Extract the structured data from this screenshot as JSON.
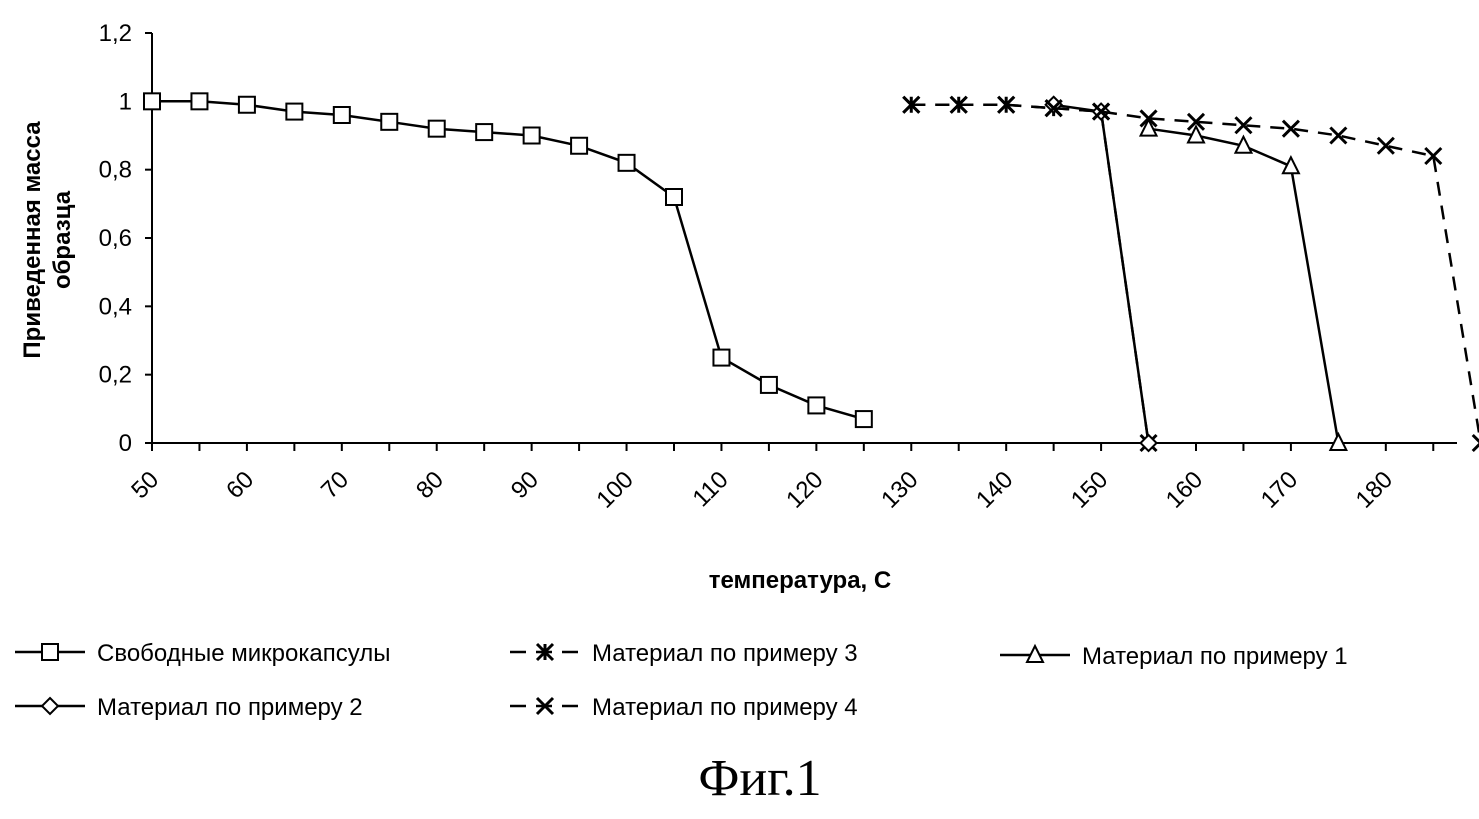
{
  "chart_data": {
    "type": "line",
    "title": "",
    "xlabel": "температура, С",
    "ylabel_line1": "Приведенная масса",
    "ylabel_line2": "образца",
    "x_tick_labels": [
      "50",
      "60",
      "70",
      "80",
      "90",
      "100",
      "110",
      "120",
      "130",
      "140",
      "150",
      "160",
      "170",
      "180"
    ],
    "x_tick_values": [
      50,
      60,
      70,
      80,
      90,
      100,
      110,
      120,
      130,
      140,
      150,
      160,
      170,
      180
    ],
    "y_tick_labels": [
      "0",
      "0,2",
      "0,4",
      "0,6",
      "0,8",
      "1",
      "1,2"
    ],
    "y_tick_values": [
      0,
      0.2,
      0.4,
      0.6,
      0.8,
      1.0,
      1.2
    ],
    "xlim": [
      50,
      187.5
    ],
    "ylim": [
      0,
      1.2
    ],
    "grid": false,
    "legend_position": "bottom",
    "series": [
      {
        "name": "Свободные микрокапсулы",
        "marker": "square",
        "x": [
          50,
          55,
          60,
          65,
          70,
          75,
          80,
          85,
          90,
          95,
          100,
          105,
          110,
          115,
          120,
          125,
          130
        ],
        "y": [
          1.0,
          1.0,
          0.99,
          0.97,
          0.96,
          0.94,
          0.92,
          0.91,
          0.9,
          0.87,
          0.82,
          0.72,
          0.25,
          0.17,
          0.11,
          0.07,
          null
        ]
      },
      {
        "name": "Материал по примеру 3",
        "marker": "star",
        "x": [
          130,
          135,
          140,
          145,
          150,
          155
        ],
        "y": [
          0.99,
          0.99,
          0.99,
          0.98,
          0.97,
          0.0
        ]
      },
      {
        "name": "Материал по примеру 1",
        "marker": "triangle",
        "x": [
          155,
          160,
          165,
          170,
          175
        ],
        "y": [
          0.92,
          0.9,
          0.87,
          0.81,
          0.0
        ]
      },
      {
        "name": "Материал по примеру 2",
        "marker": "diamond",
        "x": [
          145,
          150,
          155
        ],
        "y": [
          0.99,
          0.97,
          0.0
        ]
      },
      {
        "name": "Материал по примеру 4",
        "marker": "x",
        "x": [
          130,
          135,
          140,
          145,
          150,
          155,
          160,
          165,
          170,
          175,
          180,
          185,
          190
        ],
        "y": [
          0.99,
          0.99,
          0.99,
          0.98,
          0.97,
          0.95,
          0.94,
          0.93,
          0.92,
          0.9,
          0.87,
          0.84,
          0.0
        ]
      }
    ]
  },
  "caption": "Фиг.1"
}
